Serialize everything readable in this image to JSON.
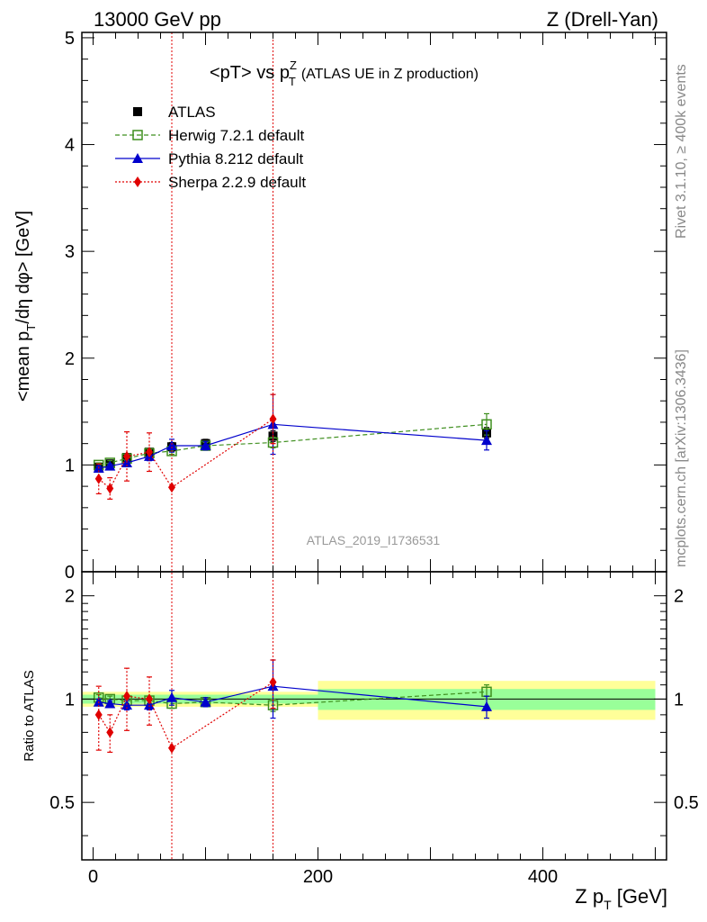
{
  "header": {
    "left": "13000 GeV pp",
    "right": "Z (Drell-Yan)"
  },
  "plot_title": {
    "main": "<pT> vs p",
    "sup": "Z",
    "sub": "T",
    "desc": "(ATLAS UE in Z production)"
  },
  "side_text": {
    "rivet": "Rivet 3.1.10, ≥ 400k events",
    "mcplots": "mcplots.cern.ch [arXiv:1306.3436]"
  },
  "watermark": "ATLAS_2019_I1736531",
  "colors": {
    "atlas": "#000000",
    "herwig": "#3f8f1f",
    "pythia": "#0000cc",
    "sherpa": "#e00000",
    "band_inner": "#99ff99",
    "band_outer": "#ffff99"
  },
  "chart_data": [
    {
      "type": "scatter",
      "panel": "main",
      "ylabel": "<mean p_T/dη dφ> [GeV]",
      "ylabel_parts": {
        "a": "<mean p",
        "sub": "T",
        "b": "/dη dφ> [GeV]"
      },
      "xlim": [
        -10,
        510
      ],
      "ylim": [
        0,
        5.05
      ],
      "yticks": [
        0,
        1,
        2,
        3,
        4,
        5
      ],
      "yticklabels": [
        "0",
        "1",
        "2",
        "3",
        "4",
        "5"
      ],
      "legend_position": "top-left",
      "vlines": [
        70,
        160
      ],
      "series": [
        {
          "name": "ATLAS",
          "key": "atlas",
          "marker": "square-filled",
          "x": [
            5,
            15,
            30,
            50,
            70,
            100,
            160,
            350
          ],
          "y": [
            0.98,
            1.01,
            1.07,
            1.12,
            1.17,
            1.2,
            1.27,
            1.3
          ],
          "err": [
            0.02,
            0.02,
            0.03,
            0.03,
            0.04,
            0.04,
            0.05,
            0.05
          ]
        },
        {
          "name": "Herwig 7.2.1 default",
          "key": "herwig",
          "marker": "square-open",
          "line": "dashed",
          "x": [
            5,
            15,
            30,
            50,
            70,
            100,
            160,
            350
          ],
          "y": [
            1.0,
            1.02,
            1.06,
            1.11,
            1.13,
            1.18,
            1.21,
            1.38
          ],
          "err": [
            0.02,
            0.02,
            0.02,
            0.03,
            0.03,
            0.03,
            0.05,
            0.1
          ]
        },
        {
          "name": "Pythia 8.212 default",
          "key": "pythia",
          "marker": "triangle-filled",
          "line": "solid",
          "x": [
            5,
            15,
            30,
            50,
            70,
            100,
            160,
            350
          ],
          "y": [
            0.97,
            0.99,
            1.02,
            1.08,
            1.18,
            1.18,
            1.38,
            1.23
          ],
          "err": [
            0.02,
            0.02,
            0.03,
            0.04,
            0.06,
            0.04,
            0.28,
            0.09
          ]
        },
        {
          "name": "Sherpa 2.2.9 default",
          "key": "sherpa",
          "marker": "diamond-filled",
          "line": "dotted",
          "x": [
            5,
            15,
            30,
            50,
            70,
            160
          ],
          "y": [
            0.87,
            0.78,
            1.08,
            1.12,
            0.79,
            1.43
          ],
          "err": [
            0.14,
            0.1,
            0.23,
            0.18,
            0.0,
            0.23
          ]
        }
      ]
    },
    {
      "type": "scatter",
      "panel": "ratio",
      "ylabel": "Ratio to ATLAS",
      "xlabel": "Z p_T [GeV]",
      "xlabel_parts": {
        "a": "Z p",
        "sub": "T",
        "b": " [GeV]"
      },
      "xlim": [
        -10,
        510
      ],
      "xticks": [
        0,
        200,
        400
      ],
      "xticklabels": [
        "0",
        "200",
        "400"
      ],
      "ylim": [
        0.34,
        2.35
      ],
      "yticks": [
        0.5,
        1,
        2
      ],
      "yticklabels": [
        "0.5",
        "1",
        "2"
      ],
      "bands": [
        {
          "x0": -10,
          "x1": 200,
          "inner": 0.03,
          "outer": 0.05
        },
        {
          "x0": 200,
          "x1": 500,
          "inner": 0.07,
          "outer": 0.13
        }
      ],
      "series": [
        {
          "name": "Herwig 7.2.1 default",
          "key": "herwig",
          "marker": "square-open",
          "line": "dashed",
          "x": [
            5,
            15,
            30,
            50,
            70,
            100,
            160,
            350
          ],
          "y": [
            1.01,
            1.0,
            0.99,
            0.99,
            0.97,
            0.98,
            0.96,
            1.05
          ],
          "err": [
            0.02,
            0.02,
            0.02,
            0.02,
            0.03,
            0.03,
            0.04,
            0.05
          ]
        },
        {
          "name": "Pythia 8.212 default",
          "key": "pythia",
          "marker": "triangle-filled",
          "line": "solid",
          "x": [
            5,
            15,
            30,
            50,
            70,
            100,
            160,
            350
          ],
          "y": [
            0.98,
            0.97,
            0.96,
            0.96,
            1.01,
            0.98,
            1.09,
            0.95
          ],
          "err": [
            0.02,
            0.02,
            0.03,
            0.03,
            0.05,
            0.03,
            0.21,
            0.07
          ]
        },
        {
          "name": "Sherpa 2.2.9 default",
          "key": "sherpa",
          "marker": "diamond-filled",
          "line": "dotted",
          "x": [
            5,
            15,
            30,
            50,
            70,
            160
          ],
          "y": [
            0.9,
            0.8,
            1.02,
            1.0,
            0.72,
            1.12
          ],
          "err": [
            0.19,
            0.1,
            0.21,
            0.16,
            0.0,
            0.18
          ]
        }
      ]
    }
  ]
}
